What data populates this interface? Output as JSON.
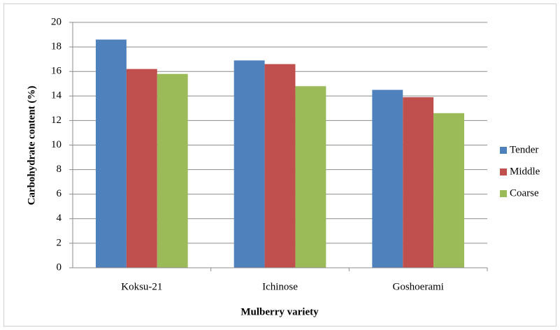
{
  "chart_data": {
    "type": "bar",
    "x_label": "Mulberry variety",
    "y_label": "Carbohydrate content (%)",
    "categories": [
      "Koksu-21",
      "Ichinose",
      "Goshoerami"
    ],
    "series": [
      {
        "name": "Tender",
        "color": "#4f81bd",
        "values": [
          18.6,
          16.9,
          14.5
        ]
      },
      {
        "name": "Middle",
        "color": "#c0504d",
        "values": [
          16.2,
          16.6,
          13.9
        ]
      },
      {
        "name": "Coarse",
        "color": "#9bbb59",
        "values": [
          15.8,
          14.8,
          12.6
        ]
      }
    ],
    "ylim": [
      0,
      20
    ],
    "yticks": [
      0,
      2,
      4,
      6,
      8,
      10,
      12,
      14,
      16,
      18,
      20
    ],
    "grid": true,
    "legend": "right"
  }
}
